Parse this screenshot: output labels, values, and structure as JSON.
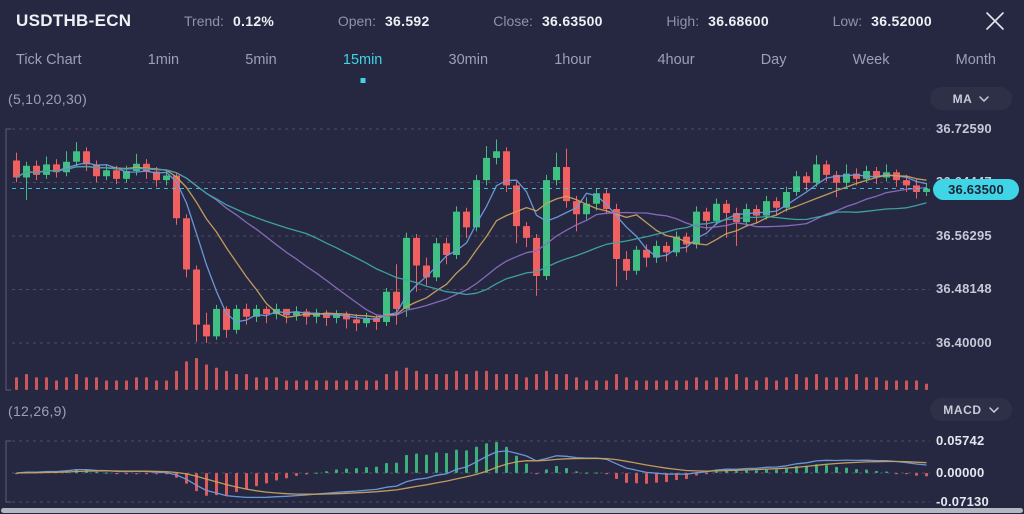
{
  "header": {
    "symbol": "USDTHB-ECN",
    "stats": [
      {
        "label": "Trend:",
        "value": "0.12%"
      },
      {
        "label": "Open:",
        "value": "36.592"
      },
      {
        "label": "Close:",
        "value": "36.63500"
      },
      {
        "label": "High:",
        "value": "36.68600"
      },
      {
        "label": "Low:",
        "value": "36.52000"
      }
    ]
  },
  "tabs": {
    "items": [
      "Tick Chart",
      "1min",
      "5min",
      "15min",
      "30min",
      "1hour",
      "4hour",
      "Day",
      "Week",
      "Month"
    ],
    "active": "15min"
  },
  "indicators": {
    "ma": {
      "params": "(5,10,20,30)",
      "selector": "MA",
      "periods": [
        5,
        10,
        20,
        30
      ]
    },
    "macd": {
      "params": "(12,26,9)",
      "selector": "MACD",
      "fast": 12,
      "slow": 26,
      "signal": 9
    }
  },
  "chart_data": {
    "type": "candlestick",
    "symbol": "USDTHB-ECN",
    "timeframe": "15min",
    "current_price": "36.63500",
    "price_axis": {
      "ticks": [
        "36.72590",
        "36.64447",
        "36.56295",
        "36.48148",
        "36.40000"
      ],
      "min": 36.4,
      "max": 36.7259
    },
    "macd_axis": {
      "ticks": [
        "0.05742",
        "0.00000",
        "-0.07130"
      ],
      "max": 0.05742,
      "min": -0.0713
    },
    "colors": {
      "up": "#3fbf82",
      "down": "#f06060",
      "volume": "#e95f5f",
      "ma5": "#6f9bdf",
      "ma10": "#c9a15f",
      "ma20": "#8d6cc0",
      "ma30": "#3fa7a5",
      "macd_line": "#6f9bdf",
      "signal_line": "#c9a15f",
      "accent": "#3fd4e6",
      "grid": "rgba(173,178,198,0.28)"
    },
    "candles": [
      [
        36.678,
        36.652,
        36.645,
        36.69
      ],
      [
        36.652,
        36.67,
        36.618,
        36.676
      ],
      [
        36.67,
        36.656,
        36.648,
        36.678
      ],
      [
        36.656,
        36.672,
        36.65,
        36.684
      ],
      [
        36.672,
        36.66,
        36.652,
        36.68
      ],
      [
        36.66,
        36.676,
        36.654,
        36.692
      ],
      [
        36.676,
        36.692,
        36.668,
        36.706
      ],
      [
        36.692,
        36.672,
        36.662,
        36.698
      ],
      [
        36.672,
        36.654,
        36.645,
        36.678
      ],
      [
        36.654,
        36.663,
        36.648,
        36.672
      ],
      [
        36.663,
        36.65,
        36.642,
        36.67
      ],
      [
        36.65,
        36.662,
        36.644,
        36.67
      ],
      [
        36.662,
        36.673,
        36.655,
        36.688
      ],
      [
        36.673,
        36.661,
        36.65,
        36.68
      ],
      [
        36.661,
        36.648,
        36.638,
        36.668
      ],
      [
        36.648,
        36.655,
        36.64,
        36.664
      ],
      [
        36.655,
        36.59,
        36.58,
        36.66
      ],
      [
        36.59,
        36.512,
        36.5,
        36.596
      ],
      [
        36.512,
        36.428,
        36.402,
        36.518
      ],
      [
        36.428,
        36.41,
        36.4,
        36.446
      ],
      [
        36.41,
        36.452,
        36.405,
        36.458
      ],
      [
        36.452,
        36.42,
        36.408,
        36.456
      ],
      [
        36.42,
        36.452,
        36.414,
        36.458
      ],
      [
        36.452,
        36.44,
        36.428,
        36.46
      ],
      [
        36.44,
        36.452,
        36.432,
        36.458
      ],
      [
        36.452,
        36.444,
        36.43,
        36.456
      ],
      [
        36.444,
        36.452,
        36.436,
        36.46
      ],
      [
        36.452,
        36.442,
        36.43,
        36.45
      ],
      [
        36.442,
        36.448,
        36.434,
        36.456
      ],
      [
        36.448,
        36.44,
        36.428,
        36.452
      ],
      [
        36.44,
        36.446,
        36.43,
        36.452
      ],
      [
        36.446,
        36.438,
        36.426,
        36.45
      ],
      [
        36.438,
        36.444,
        36.43,
        36.45
      ],
      [
        36.444,
        36.436,
        36.422,
        36.448
      ],
      [
        36.436,
        36.43,
        36.418,
        36.444
      ],
      [
        36.43,
        36.438,
        36.424,
        36.446
      ],
      [
        36.438,
        36.432,
        36.42,
        36.442
      ],
      [
        36.432,
        36.478,
        36.426,
        36.484
      ],
      [
        36.478,
        36.452,
        36.428,
        36.52
      ],
      [
        36.452,
        36.56,
        36.44,
        36.568
      ],
      [
        36.56,
        36.518,
        36.478,
        36.566
      ],
      [
        36.518,
        36.5,
        36.488,
        36.53
      ],
      [
        36.5,
        36.552,
        36.494,
        36.56
      ],
      [
        36.552,
        36.534,
        36.52,
        36.56
      ],
      [
        36.534,
        36.6,
        36.528,
        36.608
      ],
      [
        36.6,
        36.576,
        36.56,
        36.606
      ],
      [
        36.576,
        36.648,
        36.57,
        36.656
      ],
      [
        36.648,
        36.682,
        36.64,
        36.7
      ],
      [
        36.682,
        36.692,
        36.672,
        36.71
      ],
      [
        36.692,
        36.64,
        36.63,
        36.698
      ],
      [
        36.64,
        36.578,
        36.552,
        36.646
      ],
      [
        36.578,
        36.56,
        36.546,
        36.584
      ],
      [
        36.56,
        36.502,
        36.472,
        36.566
      ],
      [
        36.502,
        36.648,
        36.496,
        36.656
      ],
      [
        36.648,
        36.668,
        36.64,
        36.69
      ],
      [
        36.668,
        36.616,
        36.606,
        36.696
      ],
      [
        36.616,
        36.596,
        36.57,
        36.624
      ],
      [
        36.596,
        36.612,
        36.588,
        36.622
      ],
      [
        36.612,
        36.628,
        36.602,
        36.636
      ],
      [
        36.628,
        36.604,
        36.596,
        36.634
      ],
      [
        36.604,
        36.528,
        36.486,
        36.612
      ],
      [
        36.528,
        36.51,
        36.496,
        36.54
      ],
      [
        36.51,
        36.542,
        36.504,
        36.548
      ],
      [
        36.542,
        36.53,
        36.516,
        36.55
      ],
      [
        36.53,
        36.548,
        36.522,
        36.556
      ],
      [
        36.548,
        36.538,
        36.524,
        36.554
      ],
      [
        36.538,
        36.562,
        36.532,
        36.57
      ],
      [
        36.562,
        36.55,
        36.538,
        36.568
      ],
      [
        36.55,
        36.6,
        36.544,
        36.608
      ],
      [
        36.6,
        36.586,
        36.572,
        36.606
      ],
      [
        36.586,
        36.612,
        36.58,
        36.62
      ],
      [
        36.612,
        36.598,
        36.56,
        36.618
      ],
      [
        36.598,
        36.584,
        36.548,
        36.606
      ],
      [
        36.584,
        36.604,
        36.578,
        36.612
      ],
      [
        36.604,
        36.594,
        36.582,
        36.61
      ],
      [
        36.594,
        36.616,
        36.588,
        36.624
      ],
      [
        36.616,
        36.606,
        36.594,
        36.622
      ],
      [
        36.606,
        36.63,
        36.6,
        36.638
      ],
      [
        36.63,
        36.654,
        36.624,
        36.662
      ],
      [
        36.654,
        36.644,
        36.632,
        36.66
      ],
      [
        36.644,
        36.672,
        36.638,
        36.686
      ],
      [
        36.672,
        36.656,
        36.646,
        36.678
      ],
      [
        36.656,
        36.644,
        36.622,
        36.662
      ],
      [
        36.644,
        36.658,
        36.638,
        36.672
      ],
      [
        36.658,
        36.65,
        36.64,
        36.666
      ],
      [
        36.65,
        36.662,
        36.644,
        36.67
      ],
      [
        36.662,
        36.652,
        36.642,
        36.668
      ],
      [
        36.652,
        36.66,
        36.646,
        36.672
      ],
      [
        36.66,
        36.648,
        36.638,
        36.664
      ],
      [
        36.648,
        36.64,
        36.63,
        36.656
      ],
      [
        36.64,
        36.63,
        36.62,
        36.65
      ],
      [
        36.63,
        36.635,
        36.624,
        36.644
      ]
    ],
    "volume": [
      4,
      5,
      4,
      4,
      3,
      4,
      5,
      4,
      4,
      3,
      3,
      3,
      4,
      4,
      3,
      3,
      6,
      9,
      10,
      8,
      7,
      6,
      5,
      5,
      4,
      4,
      4,
      3,
      3,
      3,
      3,
      3,
      3,
      3,
      3,
      3,
      3,
      5,
      6,
      7,
      6,
      5,
      5,
      5,
      6,
      5,
      6,
      6,
      5,
      5,
      5,
      4,
      5,
      6,
      5,
      5,
      4,
      3,
      3,
      3,
      5,
      4,
      3,
      3,
      3,
      3,
      3,
      3,
      4,
      3,
      4,
      4,
      5,
      4,
      3,
      4,
      3,
      4,
      5,
      4,
      5,
      4,
      4,
      4,
      5,
      4,
      4,
      3,
      3,
      3,
      3,
      2
    ]
  }
}
